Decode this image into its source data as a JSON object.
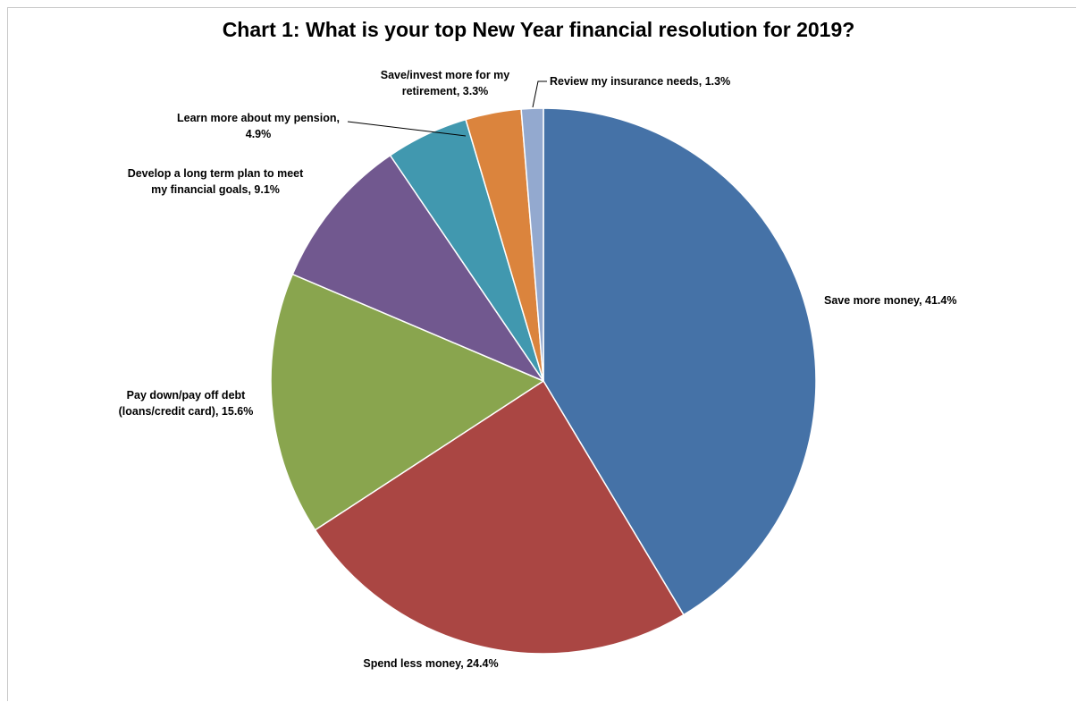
{
  "chart_data": {
    "type": "pie",
    "title": "Chart 1: What is your top New Year financial resolution for 2019?",
    "slices": [
      {
        "label": "Save more money",
        "value": 41.4,
        "color": "#4572A7",
        "label_text": [
          "Save more money, 41.4%"
        ]
      },
      {
        "label": "Spend less money",
        "value": 24.4,
        "color": "#AA4643",
        "label_text": [
          "Spend less money, 24.4%"
        ]
      },
      {
        "label": "Pay down/pay off debt (loans/credit card)",
        "value": 15.6,
        "color": "#89A54E",
        "label_text": [
          "Pay down/pay off debt",
          "(loans/credit card), 15.6%"
        ]
      },
      {
        "label": "Develop a long term plan to meet my financial goals",
        "value": 9.1,
        "color": "#71588F",
        "label_text": [
          "Develop a long term plan to meet",
          "my financial goals, 9.1%"
        ]
      },
      {
        "label": "Learn more about my pension",
        "value": 4.9,
        "color": "#4198AF",
        "label_text": [
          "Learn more about my pension,",
          "4.9%"
        ]
      },
      {
        "label": "Save/invest more for my retirement",
        "value": 3.3,
        "color": "#DB843D",
        "label_text": [
          "Save/invest more for my",
          "retirement, 3.3%"
        ]
      },
      {
        "label": "Review my insurance needs",
        "value": 1.3,
        "color": "#93A9CF",
        "label_text": [
          "Review my insurance needs, 1.3%"
        ]
      }
    ],
    "unit": "%"
  }
}
